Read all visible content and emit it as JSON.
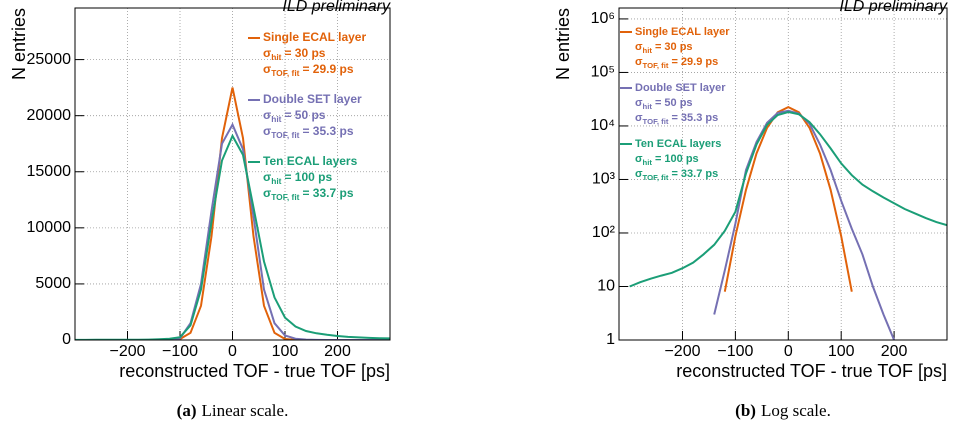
{
  "chart_data": [
    {
      "type": "line",
      "title": "ILD preliminary",
      "x_label": "reconstructed TOF - true TOF [ps]",
      "y_label": "N entries",
      "caption": {
        "label": "(a)",
        "text": "Linear scale."
      },
      "log_y": false,
      "grid": true,
      "symbol": "σ",
      "x": [
        -300,
        -280,
        -260,
        -240,
        -220,
        -200,
        -180,
        -160,
        -140,
        -120,
        -100,
        -80,
        -60,
        -40,
        -20,
        0,
        20,
        40,
        60,
        80,
        100,
        120,
        140,
        160,
        180,
        200,
        220,
        240,
        260,
        280,
        300
      ],
      "xlim": [
        -300,
        300
      ],
      "xticks": [
        {
          "value": -200,
          "label": "−200"
        },
        {
          "value": -100,
          "label": "−100"
        },
        0,
        100,
        200
      ],
      "ylim": [
        0,
        29600
      ],
      "yticks": [
        0,
        5000,
        10000,
        15000,
        20000,
        25000
      ],
      "series": [
        {
          "name": "Single ECAL layer",
          "color": "#e1620a",
          "notes": [
            {
              "sub": "hit",
              "text": "= 30 ps"
            },
            {
              "sub": "TOF, fit",
              "text": "= 29.9 ps"
            }
          ],
          "values": [
            0,
            0,
            0,
            0,
            0,
            0,
            0,
            0,
            0,
            8,
            87,
            640,
            3050,
            9250,
            18000,
            22500,
            18000,
            9250,
            3050,
            640,
            87,
            8,
            0,
            0,
            0,
            0,
            0,
            0,
            0,
            0,
            0
          ]
        },
        {
          "name": "Double SET layer",
          "color": "#7570b3",
          "notes": [
            {
              "sub": "hit",
              "text": "= 50 ps"
            },
            {
              "sub": "TOF, fit",
              "text": "= 35.3 ps"
            }
          ],
          "values": [
            0,
            0,
            0,
            0,
            0,
            0,
            0,
            0,
            3,
            20,
            150,
            1500,
            5000,
            11500,
            17500,
            19200,
            17000,
            11000,
            4500,
            1500,
            400,
            120,
            40,
            10,
            3,
            1,
            0,
            0,
            0,
            0,
            0
          ]
        },
        {
          "name": "Ten ECAL layers",
          "color": "#1b9e77",
          "notes": [
            {
              "sub": "hit",
              "text": "= 100 ps"
            },
            {
              "sub": "TOF, fit",
              "text": "= 33.7 ps"
            }
          ],
          "values": [
            10,
            12,
            14,
            16,
            18,
            22,
            28,
            40,
            60,
            110,
            250,
            1300,
            4500,
            10500,
            16000,
            18200,
            16500,
            11800,
            7000,
            3800,
            2000,
            1200,
            800,
            600,
            460,
            360,
            280,
            230,
            190,
            160,
            140
          ]
        }
      ]
    },
    {
      "type": "line",
      "title": "ILD preliminary",
      "x_label": "reconstructed TOF - true TOF [ps]",
      "y_label": "N entries",
      "caption": {
        "label": "(b)",
        "text": "Log scale."
      },
      "log_y": true,
      "grid": true,
      "symbol": "σ",
      "x": [
        -300,
        -280,
        -260,
        -240,
        -220,
        -200,
        -180,
        -160,
        -140,
        -120,
        -100,
        -80,
        -60,
        -40,
        -20,
        0,
        20,
        40,
        60,
        80,
        100,
        120,
        140,
        160,
        180,
        200,
        220,
        240,
        260,
        280,
        300
      ],
      "xlim": [
        -320,
        300
      ],
      "xticks": [
        {
          "value": -200,
          "label": "−200"
        },
        {
          "value": -100,
          "label": "−100"
        },
        0,
        100,
        200
      ],
      "ylim": [
        1,
        1600000
      ],
      "yticks": [
        1,
        10,
        {
          "value": 100,
          "label": "10²"
        },
        {
          "value": 1000,
          "label": "10³"
        },
        {
          "value": 10000,
          "label": "10⁴"
        },
        {
          "value": 100000,
          "label": "10⁵"
        },
        {
          "value": 1000000,
          "label": "10⁶"
        }
      ],
      "series": [
        {
          "name": "Single ECAL layer",
          "color": "#e1620a",
          "notes": [
            {
              "sub": "hit",
              "text": "= 30 ps"
            },
            {
              "sub": "TOF, fit",
              "text": "= 29.9 ps"
            }
          ],
          "values": [
            null,
            null,
            null,
            null,
            null,
            null,
            null,
            null,
            null,
            8,
            87,
            640,
            3050,
            9250,
            18000,
            22500,
            18000,
            9250,
            3050,
            640,
            87,
            8,
            null,
            null,
            null,
            null,
            null,
            null,
            null,
            null,
            null
          ]
        },
        {
          "name": "Double SET layer",
          "color": "#7570b3",
          "notes": [
            {
              "sub": "hit",
              "text": "= 50 ps"
            },
            {
              "sub": "TOF, fit",
              "text": "= 35.3 ps"
            }
          ],
          "values": [
            null,
            null,
            null,
            null,
            null,
            null,
            null,
            null,
            3,
            20,
            150,
            1500,
            5000,
            11500,
            17500,
            19200,
            17000,
            11000,
            4500,
            1500,
            400,
            120,
            40,
            10,
            3,
            1,
            null,
            null,
            null,
            null,
            null
          ]
        },
        {
          "name": "Ten ECAL layers",
          "color": "#1b9e77",
          "notes": [
            {
              "sub": "hit",
              "text": "= 100 ps"
            },
            {
              "sub": "TOF, fit",
              "text": "= 33.7 ps"
            }
          ],
          "values": [
            10,
            12,
            14,
            16,
            18,
            22,
            28,
            40,
            60,
            110,
            250,
            1300,
            4500,
            10500,
            16000,
            18200,
            16500,
            11800,
            7000,
            3800,
            2000,
            1200,
            800,
            600,
            460,
            360,
            280,
            230,
            190,
            160,
            140
          ]
        }
      ]
    }
  ]
}
